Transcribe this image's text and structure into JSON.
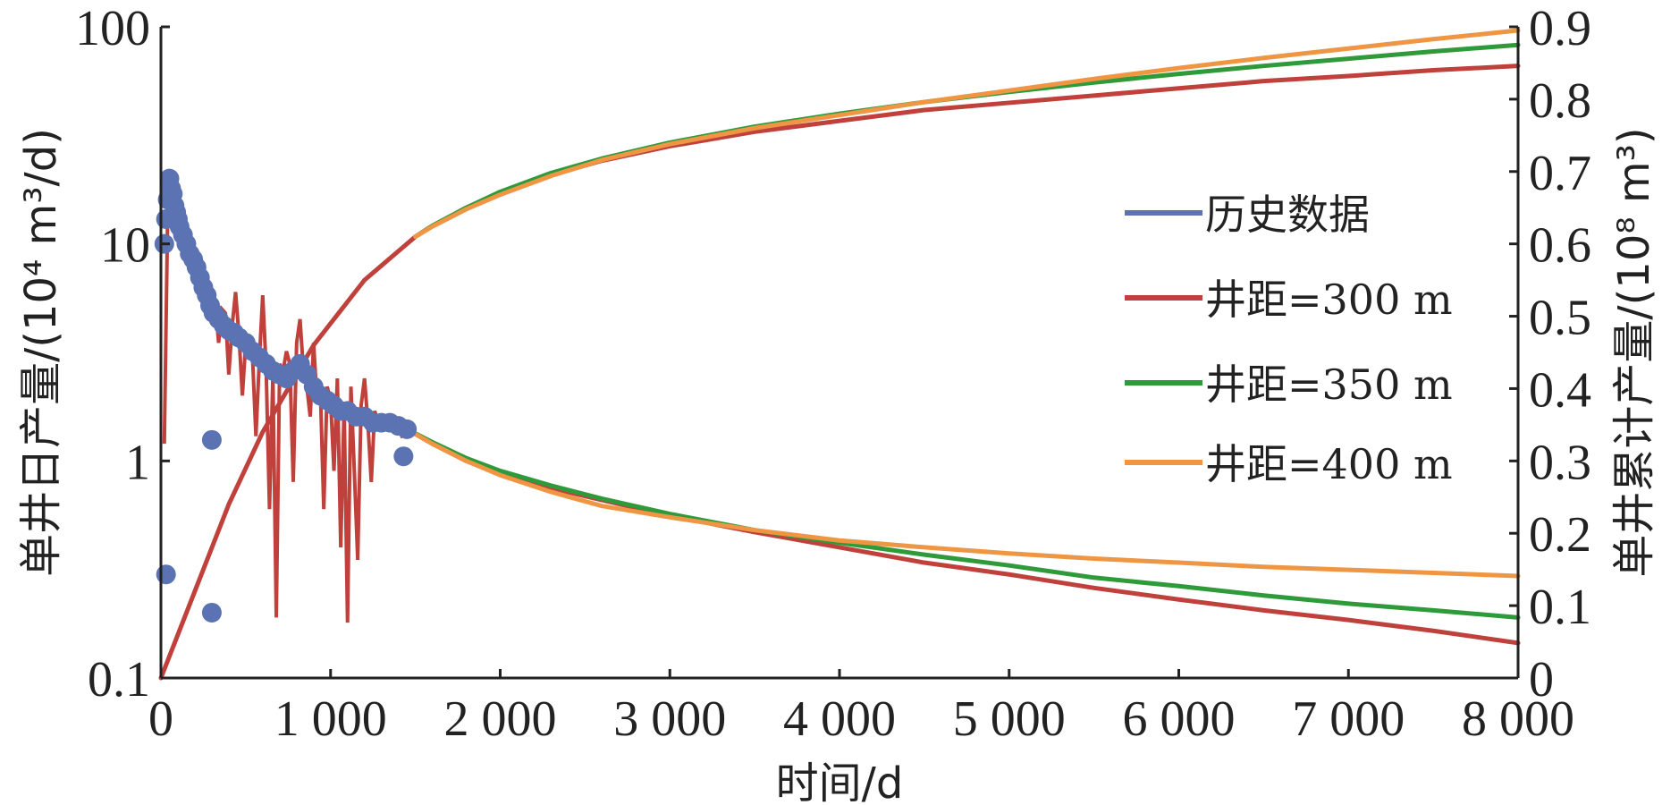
{
  "chart_data": {
    "type": "line",
    "xlabel": "时间/d",
    "ylabel_left": "单井日产量/(10⁴ m³/d)",
    "ylabel_right": "单井累计产量/(10⁸ m³)",
    "xlim": [
      0,
      8000
    ],
    "ylim_left": [
      0.1,
      100
    ],
    "ylim_right": [
      0,
      0.9
    ],
    "left_scale": "log",
    "right_scale": "linear",
    "grid": false,
    "legend_position": "right-center",
    "x_ticks": [
      0,
      1000,
      2000,
      3000,
      4000,
      5000,
      6000,
      7000,
      8000
    ],
    "x_tick_labels": [
      "0",
      "1 000",
      "2 000",
      "3 000",
      "4 000",
      "5 000",
      "6 000",
      "7 000",
      "8 000"
    ],
    "y_left_ticks": [
      0.1,
      1,
      10,
      100
    ],
    "y_left_tick_labels": [
      "0.1",
      "1",
      "10",
      "100"
    ],
    "y_right_ticks": [
      0,
      0.1,
      0.2,
      0.3,
      0.4,
      0.5,
      0.6,
      0.7,
      0.8,
      0.9
    ],
    "y_right_tick_labels": [
      "0",
      "0.1",
      "0.2",
      "0.3",
      "0.4",
      "0.5",
      "0.6",
      "0.7",
      "0.8",
      "0.9"
    ],
    "legend": [
      {
        "label": "历史数据",
        "color": "#5b73b3"
      },
      {
        "label": "井距=300 m",
        "color": "#c0413b"
      },
      {
        "label": "井距=350 m",
        "color": "#2f9a3a"
      },
      {
        "label": "井距=400 m",
        "color": "#ef9645"
      }
    ],
    "history_daily_points": {
      "axis": "left",
      "color": "#5b73b3",
      "x": [
        20,
        30,
        40,
        50,
        60,
        70,
        80,
        90,
        100,
        110,
        130,
        150,
        170,
        190,
        210,
        230,
        250,
        270,
        290,
        310,
        340,
        370,
        400,
        430,
        460,
        500,
        540,
        580,
        620,
        660,
        700,
        740,
        780,
        820,
        860,
        900,
        940,
        980,
        1020,
        1060,
        1100,
        1150,
        1200,
        1250,
        1300,
        1350,
        1400,
        1450,
        30,
        300,
        300,
        1430
      ],
      "y": [
        10,
        13,
        16,
        20,
        18,
        17,
        15,
        14,
        13,
        12,
        11,
        10,
        9,
        8.5,
        7.8,
        7,
        6.3,
        5.8,
        5.2,
        4.8,
        4.5,
        4.2,
        4,
        3.9,
        3.7,
        3.5,
        3.2,
        3,
        2.8,
        2.6,
        2.5,
        2.4,
        2.6,
        2.8,
        2.5,
        2.2,
        2,
        1.9,
        1.8,
        1.7,
        1.7,
        1.6,
        1.6,
        1.5,
        1.5,
        1.5,
        1.45,
        1.4,
        0.3,
        0.2,
        1.25,
        1.05
      ]
    },
    "history_daily_line": {
      "axis": "left",
      "color": "#c0413b",
      "x": [
        20,
        40,
        60,
        80,
        100,
        120,
        140,
        160,
        180,
        200,
        220,
        240,
        260,
        280,
        300,
        320,
        340,
        360,
        380,
        400,
        420,
        440,
        460,
        480,
        500,
        520,
        540,
        560,
        580,
        600,
        620,
        640,
        660,
        680,
        700,
        720,
        740,
        760,
        780,
        800,
        820,
        840,
        860,
        880,
        900,
        920,
        940,
        960,
        980,
        1000,
        1020,
        1040,
        1060,
        1080,
        1100,
        1120,
        1140,
        1160,
        1180,
        1200,
        1220,
        1240,
        1260,
        1280,
        1300,
        1340,
        1380,
        1420,
        1460
      ],
      "y": [
        1.2,
        14,
        18,
        16,
        14,
        12,
        11,
        10,
        9,
        8.5,
        8,
        7,
        6.5,
        5,
        6.2,
        5.5,
        3.5,
        5,
        4.8,
        2.5,
        4.2,
        6,
        3.8,
        2,
        3.5,
        3.2,
        3,
        1.3,
        2.9,
        5.8,
        2.7,
        0.6,
        2.5,
        0.19,
        2.8,
        2.6,
        3.2,
        2.8,
        0.8,
        3.5,
        4.5,
        2.6,
        2.2,
        1.6,
        3.5,
        1.9,
        2.1,
        0.6,
        2.2,
        1.9,
        0.9,
        2.4,
        0.4,
        1.8,
        0.18,
        2.2,
        0.9,
        0.35,
        1.8,
        2.4,
        1.5,
        0.8,
        1.7,
        1.5,
        1.6,
        1.4,
        1.5,
        1.3,
        1.35
      ]
    },
    "series": [
      {
        "name": "井距=300 m",
        "color": "#c0413b",
        "axis": "left",
        "kind": "daily_forecast",
        "x": [
          1450,
          1600,
          1800,
          2000,
          2300,
          2600,
          3000,
          3500,
          4000,
          4500,
          5000,
          5500,
          6000,
          6500,
          7000,
          7500,
          8000
        ],
        "y": [
          1.4,
          1.2,
          1.0,
          0.88,
          0.75,
          0.66,
          0.56,
          0.47,
          0.4,
          0.34,
          0.3,
          0.26,
          0.23,
          0.205,
          0.185,
          0.165,
          0.145
        ]
      },
      {
        "name": "井距=350 m",
        "color": "#2f9a3a",
        "axis": "left",
        "kind": "daily_forecast",
        "x": [
          1450,
          1600,
          1800,
          2000,
          2300,
          2600,
          3000,
          3500,
          4000,
          4500,
          5000,
          5500,
          6000,
          6500,
          7000,
          7500,
          8000
        ],
        "y": [
          1.4,
          1.22,
          1.03,
          0.9,
          0.77,
          0.67,
          0.57,
          0.48,
          0.42,
          0.37,
          0.33,
          0.29,
          0.265,
          0.24,
          0.22,
          0.205,
          0.19
        ]
      },
      {
        "name": "井距=400 m",
        "color": "#ef9645",
        "axis": "left",
        "kind": "daily_forecast",
        "x": [
          1450,
          1600,
          1800,
          2000,
          2300,
          2600,
          3000,
          3500,
          4000,
          4500,
          5000,
          5500,
          6000,
          6500,
          7000,
          7500,
          8000
        ],
        "y": [
          1.4,
          1.2,
          1.0,
          0.86,
          0.72,
          0.62,
          0.55,
          0.48,
          0.43,
          0.4,
          0.375,
          0.355,
          0.34,
          0.325,
          0.315,
          0.305,
          0.295
        ]
      },
      {
        "name": "井距=300 m",
        "color": "#c0413b",
        "axis": "right",
        "kind": "cumulative",
        "x": [
          0,
          50,
          100,
          200,
          300,
          400,
          500,
          600,
          700,
          800,
          900,
          1000,
          1100,
          1200,
          1300,
          1400,
          1500,
          1600,
          1800,
          2000,
          2300,
          2600,
          3000,
          3500,
          4000,
          4500,
          5000,
          5500,
          6000,
          6500,
          7000,
          7500,
          8000
        ],
        "y": [
          0,
          0.03,
          0.06,
          0.12,
          0.18,
          0.24,
          0.29,
          0.34,
          0.38,
          0.42,
          0.46,
          0.49,
          0.52,
          0.55,
          0.57,
          0.59,
          0.61,
          0.625,
          0.65,
          0.67,
          0.695,
          0.715,
          0.735,
          0.755,
          0.77,
          0.785,
          0.795,
          0.805,
          0.815,
          0.825,
          0.832,
          0.84,
          0.846
        ]
      },
      {
        "name": "井距=350 m",
        "color": "#2f9a3a",
        "axis": "right",
        "kind": "cumulative",
        "x": [
          1500,
          1600,
          1800,
          2000,
          2300,
          2600,
          3000,
          3500,
          4000,
          4500,
          5000,
          5500,
          6000,
          6500,
          7000,
          7500,
          8000
        ],
        "y": [
          0.61,
          0.625,
          0.65,
          0.672,
          0.698,
          0.718,
          0.74,
          0.762,
          0.78,
          0.796,
          0.81,
          0.823,
          0.835,
          0.846,
          0.856,
          0.866,
          0.875
        ]
      },
      {
        "name": "井距=400 m",
        "color": "#ef9645",
        "axis": "right",
        "kind": "cumulative",
        "x": [
          1500,
          1600,
          1800,
          2000,
          2300,
          2600,
          3000,
          3500,
          4000,
          4500,
          5000,
          5500,
          6000,
          6500,
          7000,
          7500,
          8000
        ],
        "y": [
          0.61,
          0.624,
          0.648,
          0.668,
          0.694,
          0.716,
          0.738,
          0.76,
          0.778,
          0.796,
          0.812,
          0.828,
          0.843,
          0.857,
          0.87,
          0.883,
          0.895
        ]
      }
    ]
  }
}
